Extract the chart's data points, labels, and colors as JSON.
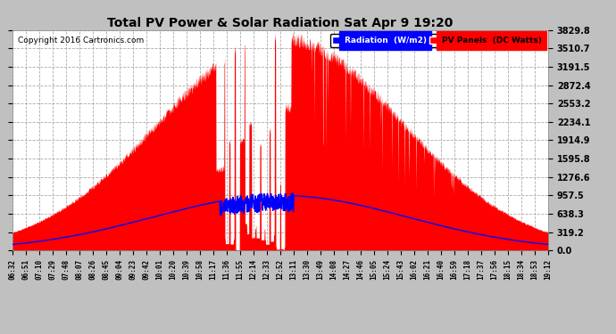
{
  "title": "Total PV Power & Solar Radiation Sat Apr 9 19:20",
  "copyright": "Copyright 2016 Cartronics.com",
  "legend_radiation": "Radiation  (W/m2)",
  "legend_pv": "PV Panels  (DC Watts)",
  "yticks": [
    0.0,
    319.2,
    638.3,
    957.5,
    1276.6,
    1595.8,
    1914.9,
    2234.1,
    2553.2,
    2872.4,
    3191.5,
    3510.7,
    3829.8
  ],
  "xtick_labels": [
    "06:32",
    "06:51",
    "07:10",
    "07:29",
    "07:48",
    "08:07",
    "08:26",
    "08:45",
    "09:04",
    "09:23",
    "09:42",
    "10:01",
    "10:20",
    "10:39",
    "10:58",
    "11:17",
    "11:36",
    "11:55",
    "12:14",
    "12:33",
    "12:52",
    "13:11",
    "13:30",
    "13:49",
    "14:08",
    "14:27",
    "14:46",
    "15:05",
    "15:24",
    "15:43",
    "16:02",
    "16:21",
    "16:40",
    "16:59",
    "17:18",
    "17:37",
    "17:56",
    "18:15",
    "18:34",
    "18:53",
    "19:12"
  ],
  "bg_color": "#c0c0c0",
  "plot_bg_color": "#ffffff",
  "grid_color": "#aaaaaa",
  "title_color": "#000000",
  "red_color": "#ff0000",
  "blue_color": "#0000ff",
  "legend_rad_bg": "#0000ff",
  "legend_pv_bg": "#ff0000",
  "ymax": 3829.8,
  "ymin": 0.0,
  "rad_peak": 957.5,
  "pv_peak": 3829.8
}
